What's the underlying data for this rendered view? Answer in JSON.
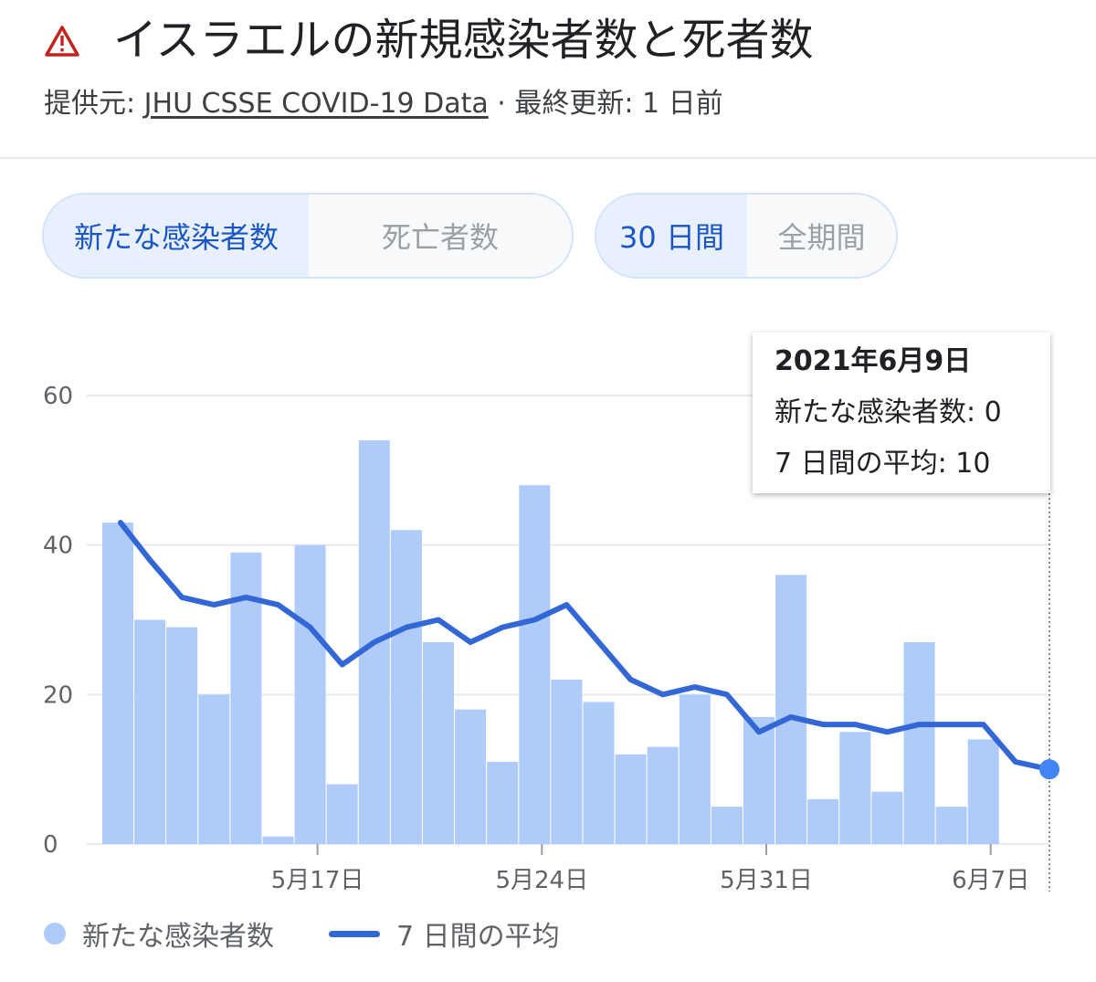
{
  "header": {
    "icon": "warning-triangle-icon",
    "title": "イスラエルの新規感染者数と死者数",
    "source_prefix": "提供元: ",
    "source_link": "JHU CSSE COVID-19 Data",
    "updated": " · 最終更新: 1 日前"
  },
  "toggles": {
    "metric": [
      {
        "label": "新たな感染者数",
        "active": true
      },
      {
        "label": "死亡者数",
        "active": false
      }
    ],
    "range": [
      {
        "label": "30 日間",
        "active": true
      },
      {
        "label": "全期間",
        "active": false
      }
    ]
  },
  "tooltip": {
    "date": "2021年6月9日",
    "new_cases": "新たな感染者数: 0",
    "avg": "7 日間の平均: 10"
  },
  "legend": {
    "cases_label": "新たな感染者数",
    "avg_label": "7 日間の平均"
  },
  "colors": {
    "bar": "#aecbfa",
    "line": "#3367d6",
    "active_text": "#1a56c4"
  },
  "chart_data": {
    "type": "bar",
    "x": [
      "5月11日",
      "5月12日",
      "5月13日",
      "5月14日",
      "5月15日",
      "5月16日",
      "5月17日",
      "5月18日",
      "5月19日",
      "5月20日",
      "5月21日",
      "5月22日",
      "5月23日",
      "5月24日",
      "5月25日",
      "5月26日",
      "5月27日",
      "5月28日",
      "5月29日",
      "5月30日",
      "5月31日",
      "6月1日",
      "6月2日",
      "6月3日",
      "6月4日",
      "6月5日",
      "6月6日",
      "6月7日",
      "6月8日",
      "6月9日"
    ],
    "x_tick_labels": [
      "5月17日",
      "5月24日",
      "5月31日",
      "6月7日"
    ],
    "x_tick_index": [
      6,
      13,
      20,
      27
    ],
    "series": [
      {
        "name": "新たな感染者数",
        "type": "bar",
        "values": [
          43,
          30,
          29,
          20,
          39,
          1,
          40,
          8,
          54,
          42,
          27,
          18,
          11,
          48,
          22,
          19,
          12,
          13,
          20,
          5,
          17,
          36,
          6,
          15,
          7,
          27,
          5,
          14,
          0,
          0
        ]
      },
      {
        "name": "7 日間の平均",
        "type": "line",
        "values": [
          43,
          38,
          33,
          32,
          33,
          32,
          29,
          24,
          27,
          29,
          30,
          27,
          29,
          30,
          32,
          27,
          22,
          20,
          21,
          20,
          15,
          17,
          16,
          16,
          15,
          16,
          16,
          16,
          11,
          10
        ]
      }
    ],
    "y_ticks": [
      "0",
      "20",
      "40",
      "60"
    ],
    "ylim": [
      0,
      60
    ],
    "grid": true,
    "legend_position": "bottom-left"
  }
}
